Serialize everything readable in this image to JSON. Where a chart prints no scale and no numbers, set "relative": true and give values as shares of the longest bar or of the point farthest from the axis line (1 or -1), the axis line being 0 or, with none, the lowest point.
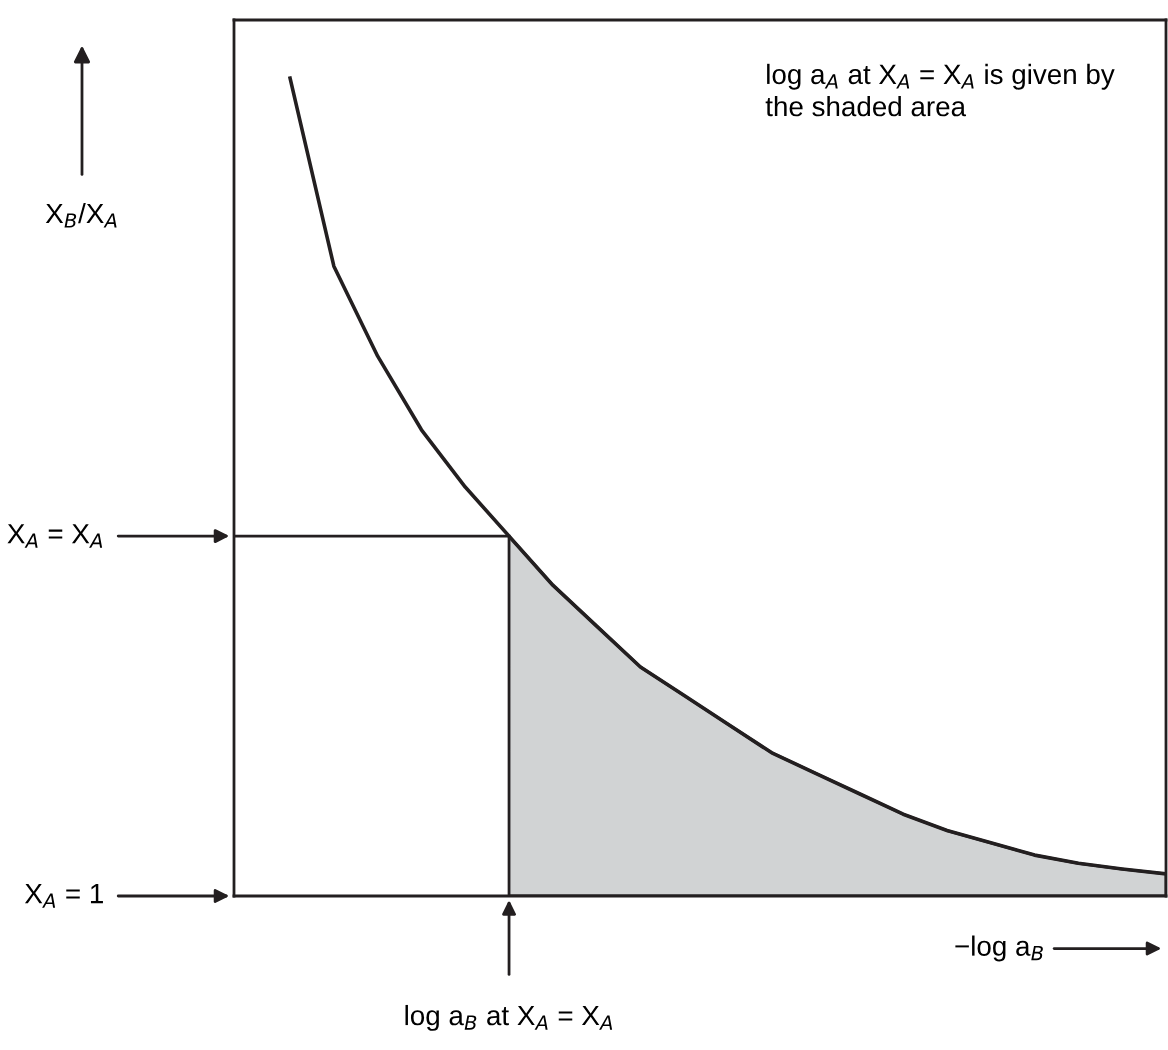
{
  "chart_data": {
    "type": "line",
    "relative": true,
    "xlabel": "−log a$_{B}$",
    "ylabel": "X$_{B}$/X$_{A}$",
    "categories": [
      null,
      null,
      null,
      null,
      null,
      null,
      null,
      null,
      null,
      null,
      null,
      null,
      null,
      null,
      null,
      null,
      null,
      null,
      null,
      null,
      null
    ],
    "series": [
      {
        "color": "#231f20",
        "values": [
          1.0,
          0.77,
          0.66,
          0.57,
          0.5,
          0.44,
          0.38,
          0.33,
          0.28,
          0.245,
          0.21,
          0.175,
          0.15,
          0.125,
          0.1,
          0.08,
          0.065,
          0.05,
          0.04,
          0.033,
          0.027
        ]
      },
      {
        "type": "area",
        "color": "#d1d3d4",
        "values": [
          null,
          null,
          null,
          null,
          null,
          0.44,
          0.38,
          0.33,
          0.28,
          0.245,
          0.21,
          0.175,
          0.15,
          0.125,
          0.1,
          0.08,
          0.065,
          0.05,
          0.04,
          0.033,
          0.027
        ]
      }
    ],
    "ref_lines": [
      {
        "axis": "y",
        "value": 0.44,
        "label": "X$_{A}$ = X$_{A}$"
      }
    ],
    "annotations": [
      "log a$_{A}$ at X$_{A}$ = X$_{A}$ is given by\nthe shaded area",
      "log a$_{B}$ at X$_{A}$ = X$_{A}$",
      "X$_{A}$ = 1"
    ],
    "grid": false,
    "legend": false,
    "marker": "none",
    "line_style": "solid"
  }
}
